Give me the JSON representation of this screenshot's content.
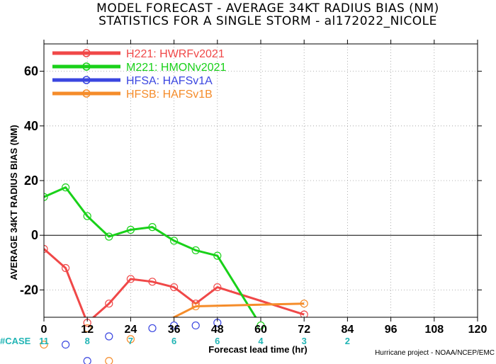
{
  "chart_data": {
    "type": "line",
    "title": "MODEL FORECAST - AVERAGE 34KT RADIUS BIAS (NM)",
    "subtitle": "STATISTICS FOR A SINGLE STORM - al172022_NICOLE",
    "xlabel": "Forecast lead time (hr)",
    "ylabel": "AVERAGE 34KT RADIUS BIAS (NM)",
    "xlim": [
      0,
      120
    ],
    "ylim": [
      -30,
      70
    ],
    "xticks": [
      0,
      12,
      24,
      36,
      48,
      60,
      72,
      84,
      96,
      108,
      120
    ],
    "yticks": [
      -20,
      0,
      20,
      40,
      60
    ],
    "grid": true,
    "legend_position": "top-left",
    "case_label": "#CASE",
    "case_counts": [
      {
        "x": 0,
        "label": "11"
      },
      {
        "x": 12,
        "label": "8"
      },
      {
        "x": 24,
        "label": "7"
      },
      {
        "x": 36,
        "label": "6"
      },
      {
        "x": 48,
        "label": "6"
      },
      {
        "x": 60,
        "label": "4"
      },
      {
        "x": 72,
        "label": "3"
      },
      {
        "x": 84,
        "label": "2"
      }
    ],
    "series": [
      {
        "name": "H221: HWRFv2021",
        "color": "#f04848",
        "x": [
          0,
          6,
          12,
          18,
          24,
          30,
          36,
          42,
          48,
          72
        ],
        "y": [
          -5,
          -12,
          -32,
          -25,
          -16,
          -17,
          -19,
          -25,
          -19,
          -29
        ]
      },
      {
        "name": "M221: HMONv2021",
        "color": "#19d119",
        "x": [
          0,
          6,
          12,
          18,
          24,
          30,
          36,
          42,
          48,
          60
        ],
        "y": [
          14,
          17.5,
          7,
          -0.5,
          2,
          3,
          -2,
          -5.5,
          -7.5,
          -33
        ]
      },
      {
        "name": "HFSA: HAFSv1A",
        "color": "#3a46e0",
        "x": [
          6,
          12,
          18,
          30,
          36,
          42,
          48
        ],
        "y": [
          -40,
          -46,
          -37,
          -34,
          -33,
          -33,
          -32
        ]
      },
      {
        "name": "HFSB: HAFSv1B",
        "color": "#f58c2a",
        "x": [
          0,
          12,
          18,
          24,
          42,
          72
        ],
        "y": [
          -40,
          -34,
          -46,
          -38,
          -26,
          -25
        ]
      }
    ],
    "credit": "Hurricane project - NOAA/NCEP/EMC"
  }
}
